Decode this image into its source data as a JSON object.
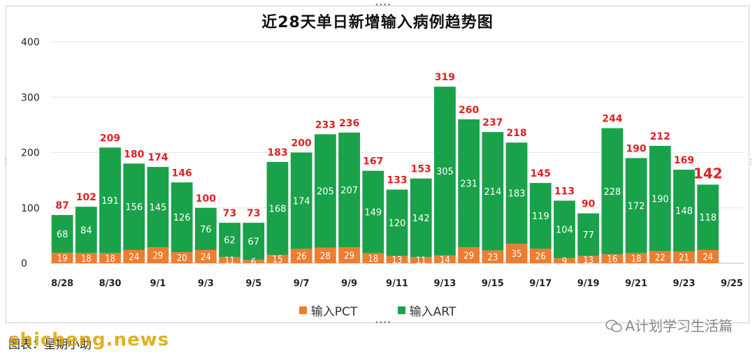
{
  "chart_data": {
    "type": "bar",
    "stacked": true,
    "title": "近28天单日新增输入病例趋势图",
    "categories": [
      "8/28",
      "8/29",
      "8/30",
      "8/31",
      "9/1",
      "9/2",
      "9/3",
      "9/4",
      "9/5",
      "9/6",
      "9/7",
      "9/8",
      "9/9",
      "9/10",
      "9/11",
      "9/12",
      "9/13",
      "9/14",
      "9/15",
      "9/16",
      "9/17",
      "9/18",
      "9/19",
      "9/20",
      "9/21",
      "9/22",
      "9/23",
      "9/24"
    ],
    "x_tick_labels": [
      "8/28",
      "8/30",
      "9/1",
      "9/3",
      "9/5",
      "9/7",
      "9/9",
      "9/11",
      "9/13",
      "9/15",
      "9/17",
      "9/19",
      "9/21",
      "9/23",
      "9/25"
    ],
    "series": [
      {
        "name": "输入PCT",
        "color": "#ed7d31",
        "values": [
          19,
          18,
          18,
          24,
          29,
          20,
          24,
          11,
          6,
          15,
          26,
          28,
          29,
          18,
          13,
          11,
          14,
          29,
          23,
          35,
          26,
          9,
          13,
          16,
          18,
          22,
          21,
          24
        ]
      },
      {
        "name": "输入ART",
        "color": "#1aa24a",
        "values": [
          68,
          84,
          191,
          156,
          145,
          126,
          76,
          62,
          67,
          168,
          174,
          205,
          207,
          149,
          120,
          142,
          305,
          231,
          214,
          183,
          119,
          104,
          77,
          228,
          172,
          190,
          148,
          118
        ]
      }
    ],
    "totals": [
      87,
      102,
      209,
      180,
      174,
      146,
      100,
      73,
      73,
      183,
      200,
      233,
      236,
      167,
      133,
      153,
      319,
      260,
      237,
      218,
      145,
      113,
      90,
      244,
      190,
      212,
      169,
      142
    ],
    "highlight_last_total": true,
    "total_label_color": "#e02020",
    "ylim": [
      0,
      400
    ],
    "yticks": [
      0,
      100,
      200,
      300,
      400
    ],
    "grid": true,
    "legend_position": "bottom"
  },
  "brand_text": "A计划学习生活篇",
  "caption_text": "图表：星期小助",
  "watermark_text": "shicheng.news",
  "icons": {
    "brand": "wechat-icon"
  }
}
